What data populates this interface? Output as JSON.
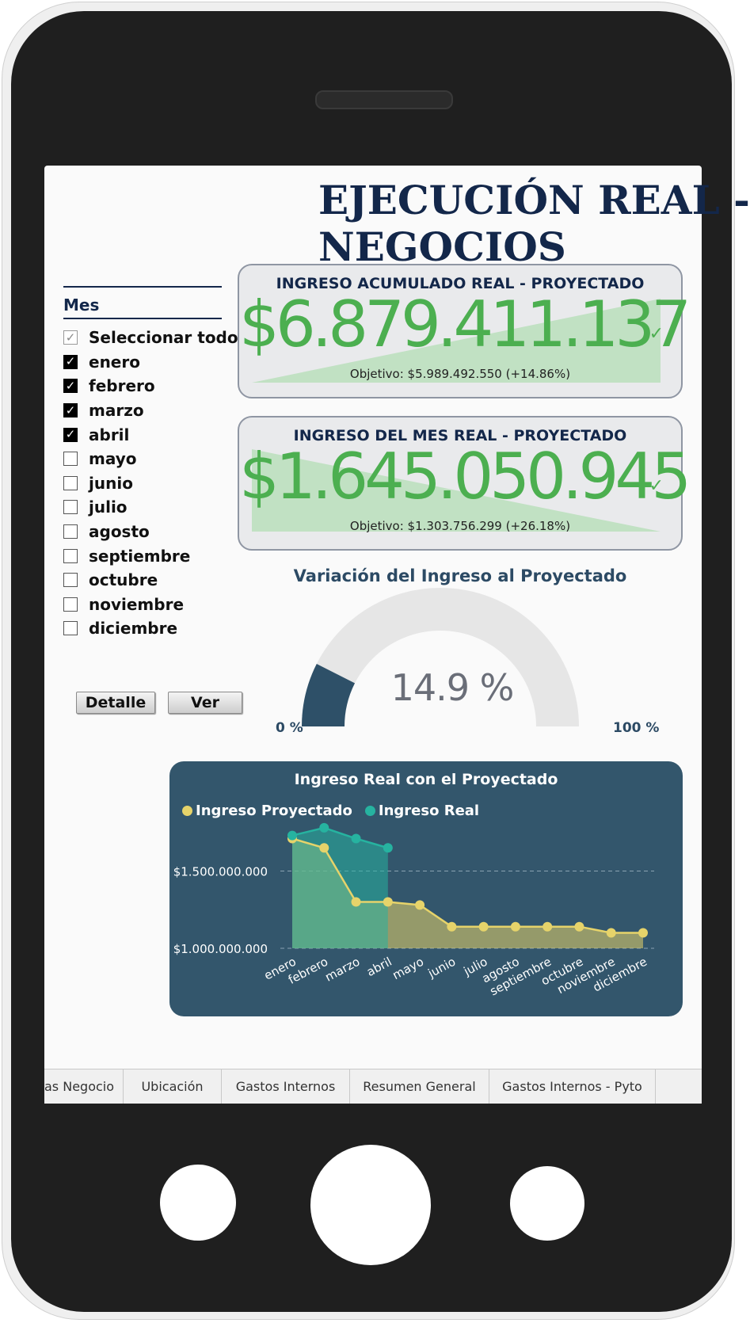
{
  "title": {
    "line1": "EJECUCIÓN REAL -",
    "line2": "NEGOCIOS"
  },
  "slicer": {
    "header": "Mes",
    "items": [
      {
        "label": "Seleccionar todo",
        "state": "partial"
      },
      {
        "label": "enero",
        "state": "checked"
      },
      {
        "label": "febrero",
        "state": "checked"
      },
      {
        "label": "marzo",
        "state": "checked"
      },
      {
        "label": "abril",
        "state": "checked"
      },
      {
        "label": "mayo",
        "state": "unchecked"
      },
      {
        "label": "junio",
        "state": "unchecked"
      },
      {
        "label": "julio",
        "state": "unchecked"
      },
      {
        "label": "agosto",
        "state": "unchecked"
      },
      {
        "label": "septiembre",
        "state": "unchecked"
      },
      {
        "label": "octubre",
        "state": "unchecked"
      },
      {
        "label": "noviembre",
        "state": "unchecked"
      },
      {
        "label": "diciembre",
        "state": "unchecked"
      }
    ]
  },
  "buttons": {
    "detalle": "Detalle",
    "ver": "Ver"
  },
  "kpi_accumulated": {
    "title": "INGRESO ACUMULADO REAL  -  PROYECTADO",
    "value": "$6.879.411.137",
    "goal": "Objetivo: $5.989.492.550 (+14.86%)",
    "check": "✓"
  },
  "kpi_month": {
    "title": "INGRESO DEL MES REAL  -  PROYECTADO",
    "value": "$1.645.050.945",
    "goal": "Objetivo: $1.303.756.299 (+26.18%)",
    "check": "✓"
  },
  "gauge": {
    "title": "Variación del Ingreso al Proyectado",
    "value_label": "14.9 %",
    "value": 14.9,
    "min_label": "0 %",
    "max_label": "100 %",
    "min": 0,
    "max": 100
  },
  "colors": {
    "projected": "#e6d36a",
    "real": "#26b3a0",
    "gauge_fill": "#2e5068",
    "gauge_track": "#e6e6e6",
    "kpi_green": "#4caf50"
  },
  "chart_data": {
    "type": "area",
    "title": "Ingreso Real con el Proyectado",
    "categories": [
      "enero",
      "febrero",
      "marzo",
      "abril",
      "mayo",
      "junio",
      "julio",
      "agosto",
      "septiembre",
      "octubre",
      "noviembre",
      "diciembre"
    ],
    "series": [
      {
        "name": "Ingreso Proyectado",
        "values": [
          1710000000,
          1650000000,
          1300000000,
          1300000000,
          1280000000,
          1140000000,
          1140000000,
          1140000000,
          1140000000,
          1140000000,
          1100000000,
          1100000000
        ]
      },
      {
        "name": "Ingreso Real",
        "values": [
          1730000000,
          1780000000,
          1710000000,
          1650000000,
          null,
          null,
          null,
          null,
          null,
          null,
          null,
          null
        ]
      }
    ],
    "y_ticks": [
      {
        "value": 1500000000,
        "label": "$1.500.000.000"
      },
      {
        "value": 1000000000,
        "label": "$1.000.000.000"
      }
    ],
    "ylim": [
      1000000000,
      1800000000
    ],
    "legend": "top-left",
    "grid": true
  },
  "tabs": [
    "as Negocio",
    "Ubicación",
    "Gastos Internos",
    "Resumen General",
    "Gastos Internos - Pyto"
  ]
}
